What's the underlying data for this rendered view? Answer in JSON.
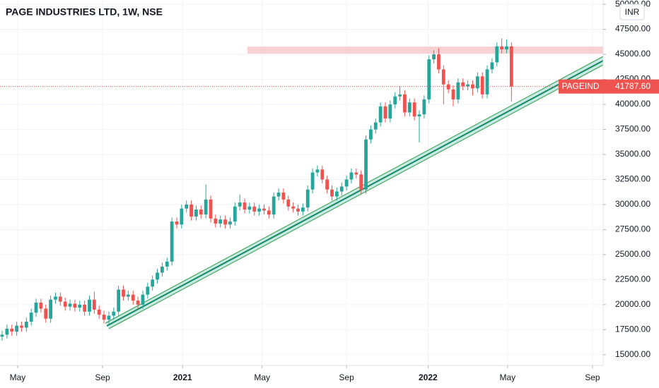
{
  "chart_data": {
    "type": "candlestick",
    "title": "PAGE INDUSTRIES LTD, 1W, NSE",
    "currency": "INR",
    "last_price": {
      "symbol": "PAGEIND",
      "label": "41787.60"
    },
    "up_color": "#26a69a",
    "down_color": "#ef5350",
    "xlim": [
      -0.44,
      123.9
    ],
    "xticks": [
      {
        "value": 3.2,
        "label": "May"
      },
      {
        "value": 20.7,
        "label": "Sep"
      },
      {
        "value": 37.2,
        "label": "2021"
      },
      {
        "value": 53.6,
        "label": "May"
      },
      {
        "value": 71,
        "label": "Sep"
      },
      {
        "value": 87.8,
        "label": "2022"
      },
      {
        "value": 104.2,
        "label": "May"
      },
      {
        "value": 121.7,
        "label": "Sep"
      }
    ],
    "ylim": [
      13929,
      50429
    ],
    "yticks": [
      {
        "value": 15000,
        "label": "15000.00"
      },
      {
        "value": 17500,
        "label": "17500.00"
      },
      {
        "value": 20000,
        "label": "20000.00"
      },
      {
        "value": 22500,
        "label": "22500.00"
      },
      {
        "value": 25000,
        "label": "25000.00"
      },
      {
        "value": 27500,
        "label": "27500.00"
      },
      {
        "value": 30000,
        "label": "30000.00"
      },
      {
        "value": 32500,
        "label": "32500.00"
      },
      {
        "value": 35000,
        "label": "35000.00"
      },
      {
        "value": 37500,
        "label": "37500.00"
      },
      {
        "value": 40000,
        "label": "40000.00"
      },
      {
        "value": 42500,
        "label": "42500.00"
      },
      {
        "value": 45000,
        "label": "45000.00"
      },
      {
        "value": 47500,
        "label": "47500.00"
      },
      {
        "value": 50000,
        "label": "50000.00"
      }
    ],
    "ohlc": [
      [
        16800,
        17400,
        16400,
        17000
      ],
      [
        17000,
        18000,
        16600,
        17600
      ],
      [
        17600,
        18000,
        16900,
        17300
      ],
      [
        17300,
        18300,
        16900,
        17900
      ],
      [
        17900,
        18300,
        17300,
        17700
      ],
      [
        17700,
        18700,
        17300,
        18300
      ],
      [
        18300,
        19600,
        17900,
        19200
      ],
      [
        19200,
        20600,
        18800,
        20200
      ],
      [
        20200,
        20600,
        19200,
        19600
      ],
      [
        19600,
        20000,
        18200,
        18600
      ],
      [
        18600,
        20900,
        18200,
        20500
      ],
      [
        20500,
        21200,
        20100,
        20800
      ],
      [
        20800,
        21200,
        19900,
        20300
      ],
      [
        20300,
        20700,
        19400,
        19800
      ],
      [
        19800,
        20500,
        19400,
        20100
      ],
      [
        20100,
        20500,
        19300,
        19700
      ],
      [
        19700,
        20400,
        19300,
        20000
      ],
      [
        20000,
        20400,
        18900,
        19300
      ],
      [
        19300,
        20900,
        18900,
        20500
      ],
      [
        20500,
        21300,
        19100,
        19500
      ],
      [
        19500,
        19900,
        18600,
        19000
      ],
      [
        19000,
        19400,
        18100,
        18500
      ],
      [
        18500,
        19300,
        18100,
        18900
      ],
      [
        18900,
        19700,
        18500,
        19300
      ],
      [
        19300,
        21900,
        18900,
        21500
      ],
      [
        21500,
        21900,
        20400,
        20800
      ],
      [
        20800,
        21400,
        20400,
        21000
      ],
      [
        21000,
        21400,
        20000,
        20400
      ],
      [
        20400,
        20800,
        19600,
        20000
      ],
      [
        20000,
        21400,
        19600,
        21000
      ],
      [
        21000,
        22200,
        20600,
        21800
      ],
      [
        21800,
        22900,
        21400,
        22500
      ],
      [
        22500,
        23600,
        22100,
        23200
      ],
      [
        23200,
        24200,
        22800,
        23800
      ],
      [
        23800,
        24700,
        23400,
        24300
      ],
      [
        24300,
        28700,
        23900,
        28300
      ],
      [
        28300,
        28700,
        27600,
        28000
      ],
      [
        28000,
        30000,
        27600,
        29600
      ],
      [
        29600,
        30400,
        29200,
        30000
      ],
      [
        30000,
        30400,
        28400,
        28800
      ],
      [
        28800,
        29900,
        28400,
        29500
      ],
      [
        29500,
        29900,
        28600,
        29000
      ],
      [
        29000,
        32000,
        28600,
        30500
      ],
      [
        30500,
        30900,
        28200,
        28600
      ],
      [
        28600,
        29000,
        27700,
        28100
      ],
      [
        28100,
        28900,
        27700,
        28500
      ],
      [
        28500,
        28900,
        27600,
        28000
      ],
      [
        28000,
        28700,
        27600,
        28300
      ],
      [
        28300,
        30200,
        27900,
        29800
      ],
      [
        29800,
        31000,
        29400,
        30200
      ],
      [
        30200,
        30600,
        29100,
        29500
      ],
      [
        29500,
        30200,
        29100,
        29800
      ],
      [
        29800,
        30200,
        28900,
        29300
      ],
      [
        29300,
        30000,
        28900,
        29600
      ],
      [
        29600,
        30000,
        29000,
        29400
      ],
      [
        29400,
        29800,
        28600,
        29000
      ],
      [
        29000,
        31200,
        28600,
        30800
      ],
      [
        30800,
        31600,
        30400,
        31200
      ],
      [
        31200,
        31600,
        30100,
        30500
      ],
      [
        30500,
        30900,
        29400,
        29800
      ],
      [
        29800,
        30200,
        29200,
        29600
      ],
      [
        29600,
        30000,
        28900,
        29300
      ],
      [
        29300,
        30100,
        28900,
        29700
      ],
      [
        29700,
        31900,
        29300,
        31500
      ],
      [
        31500,
        33600,
        31100,
        33200
      ],
      [
        33200,
        33900,
        32800,
        33500
      ],
      [
        33500,
        33900,
        32100,
        32500
      ],
      [
        32500,
        32900,
        31100,
        31500
      ],
      [
        31500,
        31900,
        30400,
        30800
      ],
      [
        30800,
        31700,
        30400,
        31300
      ],
      [
        31300,
        32200,
        30900,
        31800
      ],
      [
        31800,
        32900,
        31400,
        32500
      ],
      [
        32500,
        33600,
        32100,
        33200
      ],
      [
        33200,
        33600,
        32600,
        33000
      ],
      [
        33000,
        33400,
        31100,
        31500
      ],
      [
        31500,
        36900,
        31100,
        36500
      ],
      [
        36500,
        37900,
        36100,
        37500
      ],
      [
        37500,
        38600,
        37100,
        38200
      ],
      [
        38200,
        40200,
        37800,
        39800
      ],
      [
        39800,
        40200,
        38200,
        38600
      ],
      [
        38600,
        40400,
        38200,
        40000
      ],
      [
        40000,
        41200,
        39600,
        40800
      ],
      [
        40800,
        41800,
        40400,
        41000
      ],
      [
        41000,
        41400,
        38800,
        39200
      ],
      [
        39200,
        40600,
        38800,
        40200
      ],
      [
        40200,
        40600,
        38400,
        38800
      ],
      [
        38800,
        39400,
        36200,
        39000
      ],
      [
        39000,
        40900,
        38600,
        40500
      ],
      [
        40500,
        44900,
        40100,
        44500
      ],
      [
        44500,
        45400,
        44100,
        45000
      ],
      [
        45000,
        45600,
        43100,
        43500
      ],
      [
        43500,
        43900,
        40000,
        42000
      ],
      [
        42000,
        42400,
        41100,
        41500
      ],
      [
        41500,
        41900,
        39800,
        40500
      ],
      [
        40500,
        42600,
        40100,
        42200
      ],
      [
        42200,
        42600,
        41400,
        41800
      ],
      [
        41800,
        42400,
        41400,
        42000
      ],
      [
        42000,
        42400,
        40900,
        41600
      ],
      [
        41600,
        43200,
        41200,
        42800
      ],
      [
        42800,
        43200,
        40600,
        41000
      ],
      [
        41000,
        43900,
        40600,
        43500
      ],
      [
        43500,
        44600,
        43100,
        44200
      ],
      [
        44200,
        46200,
        43800,
        45800
      ],
      [
        45800,
        46600,
        45100,
        45500
      ],
      [
        45500,
        46500,
        45100,
        45800
      ],
      [
        45800,
        46200,
        40300,
        41787.6
      ]
    ]
  }
}
